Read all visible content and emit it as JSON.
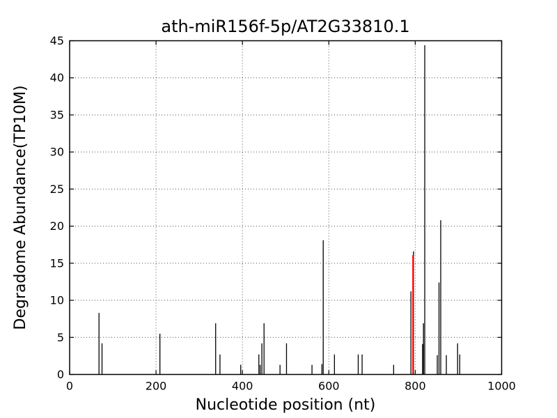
{
  "chart_data": {
    "type": "stem",
    "title": "ath-miR156f-5p/AT2G33810.1",
    "xlabel": "Nucleotide position (nt)",
    "ylabel": "Degradome Abundance(TP10M)",
    "xlim": [
      0,
      1000
    ],
    "ylim": [
      0,
      45
    ],
    "xticks": [
      0,
      200,
      400,
      600,
      800,
      1000
    ],
    "yticks": [
      0,
      5,
      10,
      15,
      20,
      25,
      30,
      35,
      40,
      45
    ],
    "grid": {
      "style": "dotted",
      "color": "#000000",
      "x_at": [
        200,
        400,
        600,
        800
      ],
      "y_at": [
        5,
        10,
        15,
        20,
        25,
        30,
        35,
        40
      ]
    },
    "colors": {
      "stem": "#000000",
      "highlight": "#ff0000",
      "frame": "#000000",
      "background": "#ffffff"
    },
    "legend": "none",
    "spikes": [
      {
        "x": 68,
        "y": 8.3
      },
      {
        "x": 75,
        "y": 4.2
      },
      {
        "x": 209,
        "y": 5.5
      },
      {
        "x": 338,
        "y": 6.9
      },
      {
        "x": 348,
        "y": 2.7
      },
      {
        "x": 396,
        "y": 1.3
      },
      {
        "x": 438,
        "y": 2.7
      },
      {
        "x": 441,
        "y": 1.3
      },
      {
        "x": 445,
        "y": 4.2
      },
      {
        "x": 450,
        "y": 6.9
      },
      {
        "x": 487,
        "y": 1.3
      },
      {
        "x": 502,
        "y": 4.2
      },
      {
        "x": 561,
        "y": 1.3
      },
      {
        "x": 584,
        "y": 1.4
      },
      {
        "x": 587,
        "y": 18.1
      },
      {
        "x": 613,
        "y": 2.7
      },
      {
        "x": 668,
        "y": 2.7
      },
      {
        "x": 677,
        "y": 2.7
      },
      {
        "x": 750,
        "y": 1.3
      },
      {
        "x": 790,
        "y": 11.2
      },
      {
        "x": 796,
        "y": 16.6
      },
      {
        "x": 795,
        "y": 16.1,
        "color": "red"
      },
      {
        "x": 817,
        "y": 4.1
      },
      {
        "x": 819,
        "y": 6.9
      },
      {
        "x": 822,
        "y": 44.4
      },
      {
        "x": 851,
        "y": 2.6
      },
      {
        "x": 855,
        "y": 12.4
      },
      {
        "x": 859,
        "y": 20.8
      },
      {
        "x": 872,
        "y": 2.6
      },
      {
        "x": 898,
        "y": 4.2
      },
      {
        "x": 903,
        "y": 2.7
      }
    ]
  }
}
